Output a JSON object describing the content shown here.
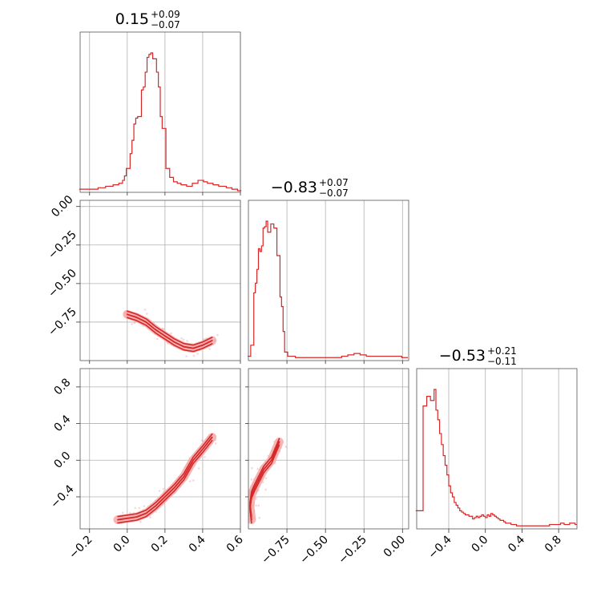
{
  "chart_data": {
    "type": "corner",
    "color": "#d62728",
    "fill_color": "#f4aaaa",
    "grid": true,
    "parameters": [
      {
        "title": {
          "median": "0.15",
          "plus": "+0.09",
          "minus": "−0.07"
        },
        "range": [
          -0.25,
          0.6
        ],
        "ticks": [
          -0.2,
          0.0,
          0.2,
          0.4,
          0.6
        ],
        "tick_labels": [
          "−0.2",
          "0.0",
          "0.2",
          "0.4",
          "0.6"
        ]
      },
      {
        "title": {
          "median": "−0.83",
          "plus": "+0.07",
          "minus": "−0.07"
        },
        "range": [
          -1.0,
          0.04
        ],
        "ticks": [
          -0.75,
          -0.5,
          -0.25,
          0.0
        ],
        "tick_labels": [
          "−0.75",
          "−0.50",
          "−0.25",
          "0.00"
        ]
      },
      {
        "title": {
          "median": "−0.53",
          "plus": "+0.21",
          "minus": "−0.11"
        },
        "range": [
          -0.75,
          1.0
        ],
        "ticks": [
          -0.4,
          0.0,
          0.4,
          0.8
        ],
        "tick_labels": [
          "−0.4",
          "0.0",
          "0.4",
          "0.8"
        ]
      }
    ],
    "histograms": [
      {
        "param": 0,
        "x": [
          -0.25,
          -0.24,
          -0.23,
          -0.22,
          -0.21,
          -0.2,
          -0.19,
          -0.18,
          -0.17,
          -0.16,
          -0.15,
          -0.14,
          -0.13,
          -0.12,
          -0.11,
          -0.1,
          -0.09,
          -0.08,
          -0.07,
          -0.06,
          -0.05,
          -0.04,
          -0.03,
          -0.02,
          -0.01,
          0.0,
          0.01,
          0.02,
          0.03,
          0.04,
          0.05,
          0.06,
          0.07,
          0.08,
          0.09,
          0.1,
          0.11,
          0.12,
          0.13,
          0.14,
          0.15,
          0.16,
          0.17,
          0.18,
          0.19,
          0.2,
          0.21,
          0.22,
          0.23,
          0.24,
          0.25,
          0.26,
          0.27,
          0.28,
          0.29,
          0.3,
          0.31,
          0.32,
          0.33,
          0.34,
          0.35,
          0.36,
          0.37,
          0.38,
          0.39,
          0.4,
          0.41,
          0.42,
          0.43,
          0.44,
          0.45,
          0.46,
          0.47,
          0.48,
          0.49,
          0.5,
          0.51,
          0.52,
          0.53,
          0.54,
          0.55,
          0.56,
          0.57,
          0.58,
          0.59,
          0.6
        ],
        "counts": [
          1,
          1,
          1,
          1,
          1,
          1,
          1,
          1,
          1,
          1,
          2,
          2,
          2,
          2,
          3,
          3,
          3,
          3,
          4,
          4,
          4,
          5,
          5,
          7,
          10,
          15,
          15,
          25,
          34,
          45,
          49,
          50,
          50,
          68,
          70,
          80,
          90,
          92,
          93,
          89,
          89,
          80,
          70,
          50,
          42,
          42,
          15,
          15,
          9,
          9,
          6,
          6,
          5,
          5,
          4,
          4,
          4,
          3,
          3,
          3,
          5,
          5,
          5,
          7,
          7,
          7,
          6,
          6,
          5,
          5,
          5,
          4,
          4,
          4,
          3,
          3,
          3,
          3,
          2,
          2,
          2,
          1,
          1,
          1,
          0,
          0
        ]
      },
      {
        "param": 1,
        "x": [
          -1.0,
          -0.99,
          -0.98,
          -0.97,
          -0.96,
          -0.95,
          -0.94,
          -0.93,
          -0.92,
          -0.91,
          -0.9,
          -0.89,
          -0.88,
          -0.87,
          -0.86,
          -0.85,
          -0.84,
          -0.83,
          -0.82,
          -0.81,
          -0.8,
          -0.79,
          -0.78,
          -0.77,
          -0.76,
          -0.75,
          -0.74,
          -0.73,
          -0.72,
          -0.71,
          -0.7,
          -0.69,
          -0.68,
          -0.67,
          -0.66,
          -0.65,
          -0.64,
          -0.63,
          -0.62,
          -0.61,
          -0.6,
          -0.59,
          -0.58,
          -0.57,
          -0.56,
          -0.55,
          -0.54,
          -0.53,
          -0.52,
          -0.51,
          -0.5,
          -0.49,
          -0.48,
          -0.47,
          -0.46,
          -0.45,
          -0.44,
          -0.43,
          -0.42,
          -0.41,
          -0.4,
          -0.39,
          -0.38,
          -0.37,
          -0.36,
          -0.35,
          -0.34,
          -0.33,
          -0.32,
          -0.31,
          -0.3,
          -0.29,
          -0.28,
          -0.27,
          -0.26,
          -0.25,
          -0.24,
          -0.23,
          -0.22,
          -0.21,
          -0.2,
          -0.19,
          -0.18,
          -0.17,
          -0.16,
          -0.15,
          -0.14,
          -0.13,
          -0.12,
          -0.11,
          -0.1,
          -0.09,
          -0.08,
          -0.07,
          -0.06,
          -0.05,
          -0.04,
          -0.03,
          -0.02,
          -0.01,
          0.0,
          0.01,
          0.02,
          0.03
        ],
        "counts": [
          2,
          2,
          10,
          10,
          48,
          55,
          65,
          80,
          78,
          82,
          95,
          96,
          100,
          92,
          92,
          98,
          98,
          95,
          95,
          75,
          75,
          45,
          38,
          20,
          5,
          5,
          2,
          2,
          2,
          2,
          2,
          1,
          1,
          1,
          1,
          1,
          1,
          1,
          1,
          1,
          1,
          1,
          1,
          1,
          1,
          1,
          1,
          1,
          1,
          1,
          1,
          1,
          1,
          1,
          1,
          1,
          1,
          1,
          1,
          1,
          1,
          2,
          2,
          2,
          2,
          3,
          3,
          3,
          3,
          4,
          4,
          4,
          4,
          3,
          3,
          3,
          3,
          2,
          2,
          2,
          2,
          2,
          2,
          2,
          2,
          2,
          2,
          2,
          2,
          2,
          2,
          2,
          2,
          2,
          2,
          2,
          2,
          2,
          2,
          2,
          1,
          1,
          1,
          1
        ]
      },
      {
        "param": 2,
        "x": [
          -0.75,
          -0.73,
          -0.71,
          -0.69,
          -0.67,
          -0.65,
          -0.63,
          -0.61,
          -0.59,
          -0.57,
          -0.55,
          -0.53,
          -0.51,
          -0.49,
          -0.47,
          -0.45,
          -0.43,
          -0.41,
          -0.39,
          -0.37,
          -0.35,
          -0.33,
          -0.31,
          -0.29,
          -0.27,
          -0.25,
          -0.23,
          -0.21,
          -0.19,
          -0.17,
          -0.15,
          -0.13,
          -0.11,
          -0.09,
          -0.07,
          -0.05,
          -0.03,
          -0.01,
          0.01,
          0.03,
          0.05,
          0.07,
          0.09,
          0.11,
          0.13,
          0.15,
          0.17,
          0.19,
          0.21,
          0.23,
          0.25,
          0.27,
          0.29,
          0.31,
          0.33,
          0.35,
          0.37,
          0.39,
          0.41,
          0.43,
          0.45,
          0.47,
          0.49,
          0.51,
          0.53,
          0.55,
          0.57,
          0.59,
          0.61,
          0.63,
          0.65,
          0.67,
          0.69,
          0.71,
          0.73,
          0.75,
          0.77,
          0.79,
          0.81,
          0.83,
          0.85,
          0.87,
          0.89,
          0.91,
          0.93,
          0.95,
          0.97,
          0.99
        ],
        "counts": [
          12,
          12,
          12,
          12,
          88,
          88,
          95,
          95,
          92,
          92,
          100,
          85,
          78,
          68,
          60,
          52,
          45,
          38,
          30,
          25,
          22,
          18,
          16,
          14,
          12,
          11,
          10,
          9,
          9,
          8,
          8,
          6,
          7,
          8,
          7,
          8,
          9,
          8,
          7,
          9,
          8,
          10,
          9,
          8,
          7,
          6,
          5,
          5,
          4,
          3,
          3,
          3,
          2,
          2,
          2,
          1,
          1,
          1,
          1,
          1,
          1,
          1,
          1,
          1,
          1,
          1,
          1,
          1,
          1,
          1,
          1,
          1,
          1,
          2,
          2,
          2,
          2,
          2,
          2,
          3,
          3,
          2,
          2,
          2,
          3,
          3,
          3,
          2
        ]
      }
    ],
    "pairs": [
      {
        "x_param": 0,
        "y_param": 1,
        "ridge": [
          [
            0.0,
            -0.7
          ],
          [
            0.05,
            -0.72
          ],
          [
            0.1,
            -0.75
          ],
          [
            0.15,
            -0.8
          ],
          [
            0.2,
            -0.84
          ],
          [
            0.25,
            -0.88
          ],
          [
            0.3,
            -0.91
          ],
          [
            0.35,
            -0.92
          ],
          [
            0.4,
            -0.9
          ],
          [
            0.45,
            -0.87
          ]
        ]
      },
      {
        "x_param": 0,
        "y_param": 2,
        "ridge": [
          [
            -0.05,
            -0.65
          ],
          [
            0.05,
            -0.62
          ],
          [
            0.1,
            -0.58
          ],
          [
            0.15,
            -0.5
          ],
          [
            0.2,
            -0.4
          ],
          [
            0.25,
            -0.3
          ],
          [
            0.3,
            -0.18
          ],
          [
            0.35,
            0.0
          ],
          [
            0.4,
            0.12
          ],
          [
            0.45,
            0.25
          ]
        ]
      },
      {
        "x_param": 1,
        "y_param": 2,
        "ridge": [
          [
            -0.98,
            -0.65
          ],
          [
            -0.99,
            -0.5
          ],
          [
            -0.98,
            -0.38
          ],
          [
            -0.96,
            -0.3
          ],
          [
            -0.93,
            -0.2
          ],
          [
            -0.9,
            -0.1
          ],
          [
            -0.85,
            0.0
          ],
          [
            -0.8,
            0.2
          ]
        ]
      }
    ]
  }
}
